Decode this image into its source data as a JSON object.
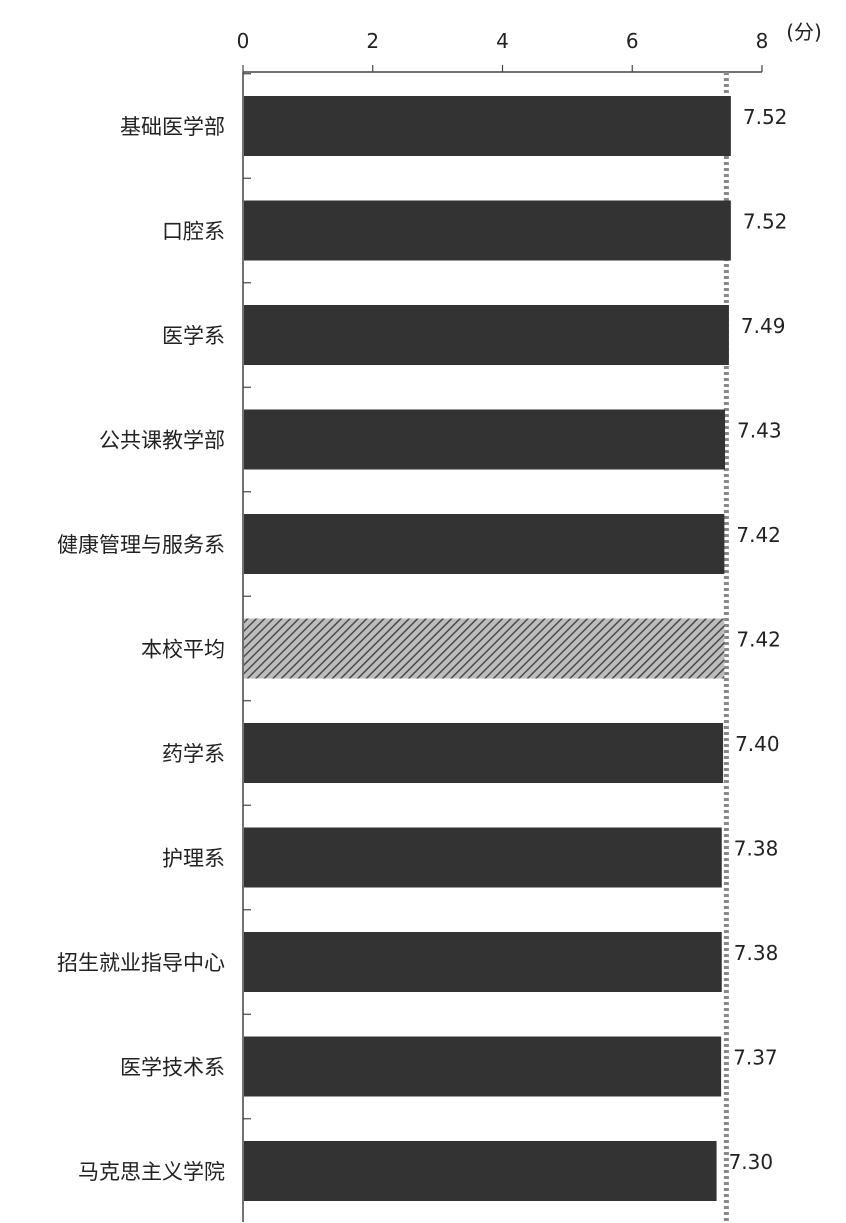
{
  "chart_data": {
    "type": "bar",
    "orientation": "horizontal",
    "xlim": [
      0,
      8
    ],
    "x_ticks": [
      "0",
      "2",
      "4",
      "6",
      "8"
    ],
    "unit_label": "(分)",
    "reference_line": 7.42,
    "grid": false,
    "categories": [
      "基础医学部",
      "口腔系",
      "医学系",
      "公共课教学部",
      "健康管理与服务系",
      "本校平均",
      "药学系",
      "护理系",
      "招生就业指导中心",
      "医学技术系",
      "马克思主义学院"
    ],
    "values": [
      7.52,
      7.52,
      7.49,
      7.43,
      7.42,
      7.42,
      7.4,
      7.38,
      7.38,
      7.37,
      7.3
    ],
    "value_labels": [
      "7.52",
      "7.52",
      "7.49",
      "7.43",
      "7.42",
      "7.42",
      "7.40",
      "7.38",
      "7.38",
      "7.37",
      "7.30"
    ],
    "highlight_category": "本校平均",
    "colors": {
      "bar": "#333333",
      "average_bar": "#6a6a6a",
      "axis": "#444444",
      "reference": "#888888",
      "text": "#222222"
    }
  }
}
